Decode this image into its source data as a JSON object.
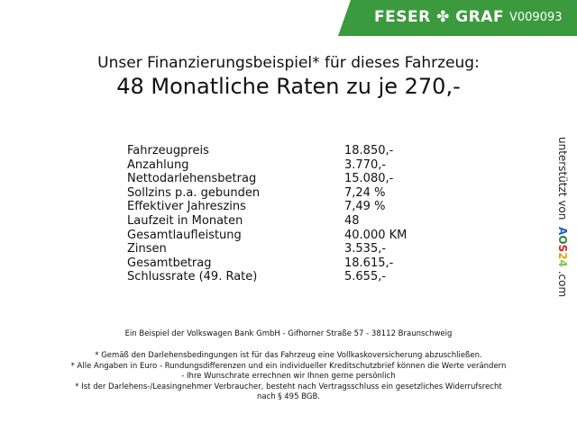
{
  "header": {
    "brand": "FESER ✤ GRAF",
    "vehicle_id": "V009093",
    "brand_color": "#3c9a3e"
  },
  "title": "Unser Finanzierungsbeispiel* für dieses Fahrzeug:",
  "subtitle": "48 Monatliche Raten zu je 270,-",
  "rows": [
    {
      "label": "Fahrzeugpreis",
      "value": "18.850,-"
    },
    {
      "label": "Anzahlung",
      "value": "3.770,-"
    },
    {
      "label": "Nettodarlehensbetrag",
      "value": "15.080,-"
    },
    {
      "label": "Sollzins p.a. gebunden",
      "value": "7,24 %"
    },
    {
      "label": "Effektiver Jahreszins",
      "value": "7,49 %"
    },
    {
      "label": "Laufzeit in Monaten",
      "value": "48"
    },
    {
      "label": "Gesamtlaufleistung",
      "value": "40.000 KM"
    },
    {
      "label": "Zinsen",
      "value": "3.535,-"
    },
    {
      "label": "Gesamtbetrag",
      "value": "18.615,-"
    },
    {
      "label": "Schlussrate (49. Rate)",
      "value": "5.655,-"
    }
  ],
  "side": {
    "text": "unterstützt von",
    "logo": [
      "A",
      "O",
      "S",
      "2",
      "4"
    ],
    "suffix": ".com"
  },
  "bank": "Ein Beispiel der Volkswagen Bank GmbH - Gifhorner Straße 57 - 38112 Braunschweig",
  "notes": [
    "* Gemäß den Darlehensbedingungen ist für das Fahrzeug eine Vollkaskoversicherung abzuschließen.",
    "* Alle Angaben in Euro - Rundungsdifferenzen und ein individueller Kreditschutzbrief können die Werte verändern",
    "- Ihre Wunschrate errechnen wir Ihnen gerne persönlich",
    "* Ist der Darlehens-/Leasingnehmer Verbraucher, besteht nach Vertragsschluss ein gesetzliches Widerrufsrecht",
    "nach § 495 BGB."
  ]
}
